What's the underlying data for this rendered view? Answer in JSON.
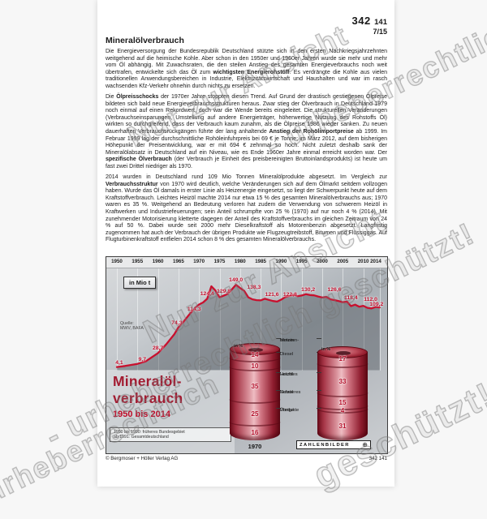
{
  "header": {
    "code_main": "342",
    "code_sub": "141",
    "page": "7/15"
  },
  "title": "Mineralölverbrauch",
  "paragraphs": [
    [
      {
        "t": "Die Energieversorgung der Bundesrepublik Deutschland stützte sich in den ersten Nachkriegsjahrzehnten weitgehend auf die heimische Kohle. Aber schon in den 1950er und 1960er Jahren wurde sie mehr und mehr vom Öl abhängig. Mit Zuwachsraten, die den steilen Anstieg des gesamten Energieverbrauchs noch weit übertrafen, entwickelte sich das Öl zum ",
        "b": false
      },
      {
        "t": "wichtigsten Energierohstoff",
        "b": true
      },
      {
        "t": ". Es verdrängte die Kohle aus vielen traditionellen Anwendungsbereichen in Industrie, Elektrizitätswirtschaft und Haushalten und war im rasch wachsenden Kfz-Verkehr ohnehin durch nichts zu ersetzen.",
        "b": false
      }
    ],
    [
      {
        "t": "Die ",
        "b": false
      },
      {
        "t": "Ölpreisschocks",
        "b": true
      },
      {
        "t": " der 1970er Jahre stoppten diesen Trend. Auf Grund der drastisch gestiegenen Ölpreise bildeten sich bald neue Energieverbrauchsstrukturen heraus. Zwar stieg der Ölverbrauch in Deutschland 1979 noch einmal auf einen Rekordwert, doch war die Wende bereits eingeleitet. Die strukturellen Veränderungen (Verbrauchseinsparungen, Umstellung auf andere Energieträger, höherwertige Nutzung des Rohstoffs Öl) wirkten so durchgreifend, dass der Verbrauch kaum zunahm, als die Ölpreise 1986 wieder sanken. Zu neuen dauerhaften Verbrauchsrückgängen führte der lang anhaltende ",
        "b": false
      },
      {
        "t": "Anstieg der Rohölimportpreise",
        "b": true
      },
      {
        "t": " ab 1999. Im Februar 1999 lag der durchschnittliche Rohöleinfuhrpreis bei 69 € je Tonne; im März 2012, auf dem bisherigen Höhepunkt der Preisentwicklung, war er mit 694 € zehnmal so hoch. Nicht zuletzt deshalb sank der Mineralölabsatz in Deutschland auf ein Niveau, wie es Ende 1960er Jahre einmal erreicht worden war. Der ",
        "b": false
      },
      {
        "t": "spezifische Ölverbrauch",
        "b": true
      },
      {
        "t": " (der Verbrauch je Einheit des preisbereinigten Bruttoinlandsprodukts) ist heute um fast zwei Drittel niedriger als 1970.",
        "b": false
      }
    ],
    [
      {
        "t": "2014 wurden in Deutschland rund 109 Mio Tonnen Mineralölprodukte abgesetzt. Im Vergleich zur ",
        "b": false
      },
      {
        "t": "Verbrauchsstruktur",
        "b": true
      },
      {
        "t": " von 1970 wird deutlich, welche Veränderungen sich auf dem Ölmarkt seitdem vollzogen haben. Wurde das Öl damals in erster Linie als Heizenergie eingesetzt, so liegt der Schwerpunkt heute auf dem Kraftstoffverbrauch. Leichtes Heizöl machte 2014 nur etwa 15 % des gesamten Mineralölverbrauchs aus; 1970 waren es 35 %. Weitgehend an Bedeutung verloren hat zudem die Verwendung von schwerem Heizöl in Kraftwerken und Industriefeuerungen; sein Anteil schrumpfte von 25 % (1970) auf nur noch 4 % (2014). Mit zunehmender Motorisierung kletterte dagegen der Anteil des Kraftstoffverbrauchs im gleichen Zeitraum von 24 % auf 50 %. Dabei wurde seit 2000 mehr Dieselkraftstoff als Motorenbenzin abgesetzt. Langfristig zugenommen hat auch der Verbrauch der übrigen Produkte wie Flugzeugtreibstoff, Bitumen und Flüssiggas. Auf Flugturbinenkraftstoff entfielen 2014 schon 8 % des gesamten Mineralölverbrauchs.",
        "b": false
      }
    ]
  ],
  "chart_data": {
    "type": "line",
    "title_lines": [
      "Mineralöl-",
      "verbrauch"
    ],
    "subtitle": "1950 bis 2014",
    "unit_label": "in Mio t",
    "source_lines": [
      "Quelle:",
      "MWV, BAFA"
    ],
    "footnote_lines": [
      "1950 bis 1990: früheres Bundesgebiet",
      "ab 1991: Gesamtdeutschland"
    ],
    "x_ticks": [
      "1950",
      "1955",
      "1960",
      "1965",
      "1970",
      "1975",
      "1980",
      "1985",
      "1990",
      "1995",
      "2000",
      "2005",
      "2010",
      "2014"
    ],
    "ylim": [
      0,
      160
    ],
    "grid": true,
    "line_color": "#c8102e",
    "labeled_points": [
      {
        "year": 1950,
        "value": 4.1,
        "label": "4,1"
      },
      {
        "year": 1955,
        "value": 9.7,
        "label": "9,7"
      },
      {
        "year": 1960,
        "value": 28.7,
        "label": "28,7"
      },
      {
        "year": 1965,
        "value": 74.3,
        "label": "74,3"
      },
      {
        "year": 1970,
        "value": 114.3,
        "label": "114,3"
      },
      {
        "year": 1972,
        "value": 124.4,
        "label": "124,4"
      },
      {
        "year": 1976,
        "value": 129.8,
        "label": "129,8"
      },
      {
        "year": 1979,
        "value": 149.0,
        "label": "149,0"
      },
      {
        "year": 1981,
        "value": 138.3,
        "label": "138,3"
      },
      {
        "year": 1985,
        "value": 121.6,
        "label": "121,6"
      },
      {
        "year": 1990,
        "value": 122.8,
        "label": "122,8"
      },
      {
        "year": 1995,
        "value": 130.2,
        "label": "130,2"
      },
      {
        "year": 2000,
        "value": 126.6,
        "label": "126,6"
      },
      {
        "year": 2005,
        "value": 118.4,
        "label": "118,4"
      },
      {
        "year": 2010,
        "value": 112.0,
        "label": "112,0"
      },
      {
        "year": 2014,
        "value": 109.2,
        "label": "109,2"
      }
    ],
    "curve": [
      [
        1950,
        4.1
      ],
      [
        1952,
        6
      ],
      [
        1955,
        9.7
      ],
      [
        1957,
        14
      ],
      [
        1960,
        28.7
      ],
      [
        1962,
        44
      ],
      [
        1964,
        62
      ],
      [
        1965,
        74.3
      ],
      [
        1966,
        82
      ],
      [
        1967,
        91
      ],
      [
        1968,
        100
      ],
      [
        1969,
        108
      ],
      [
        1970,
        114.3
      ],
      [
        1971,
        118
      ],
      [
        1972,
        124.4
      ],
      [
        1973,
        146.5
      ],
      [
        1974,
        139
      ],
      [
        1975,
        127
      ],
      [
        1976,
        129.8
      ],
      [
        1977,
        133
      ],
      [
        1978,
        141
      ],
      [
        1979,
        149
      ],
      [
        1980,
        143.5
      ],
      [
        1981,
        138.3
      ],
      [
        1982,
        127
      ],
      [
        1983,
        123.5
      ],
      [
        1984,
        122
      ],
      [
        1985,
        121.6
      ],
      [
        1986,
        124.5
      ],
      [
        1987,
        122.5
      ],
      [
        1988,
        120.5
      ],
      [
        1989,
        119.5
      ],
      [
        1990,
        122.8
      ],
      [
        1991,
        127.5
      ],
      [
        1992,
        129.5
      ],
      [
        1993,
        131.5
      ],
      [
        1994,
        129
      ],
      [
        1995,
        130.2
      ],
      [
        1996,
        132.5
      ],
      [
        1997,
        131
      ],
      [
        1998,
        130.5
      ],
      [
        1999,
        128.5
      ],
      [
        2000,
        126.6
      ],
      [
        2001,
        127.8
      ],
      [
        2002,
        123.5
      ],
      [
        2003,
        122
      ],
      [
        2004,
        120.5
      ],
      [
        2005,
        118.4
      ],
      [
        2006,
        119.5
      ],
      [
        2007,
        111.5
      ],
      [
        2008,
        114
      ],
      [
        2009,
        110.5
      ],
      [
        2010,
        112
      ],
      [
        2011,
        108.5
      ],
      [
        2012,
        107.5
      ],
      [
        2013,
        110
      ],
      [
        2014,
        109.2
      ]
    ],
    "barrels": {
      "unit_label": "in %",
      "legend": [
        {
          "name": "Motorenbenzin",
          "lines": [
            "Motoren-",
            "benzin"
          ]
        },
        {
          "name": "Diesel",
          "lines": [
            "Diesel"
          ]
        },
        {
          "name": "Leichtes Heizöl",
          "lines": [
            "Leichtes",
            "Heizöl"
          ]
        },
        {
          "name": "Schweres Heizöl",
          "lines": [
            "Schweres",
            "Heizöl"
          ]
        },
        {
          "name": "Übrige Produkte",
          "lines": [
            "Übrige",
            "Produkte"
          ]
        }
      ],
      "series": [
        {
          "name": "1970",
          "values": [
            14,
            10,
            35,
            25,
            16
          ]
        },
        {
          "name": "2014",
          "values": [
            17,
            33,
            15,
            4,
            31
          ]
        }
      ]
    }
  },
  "watermark": {
    "texts": [
      "Nur zur Ansicht",
      "- urheberrechtlich",
      "geschützt!",
      "- urheberrechtlich geschützt!"
    ]
  },
  "footer": {
    "logo_text": "ZAHLENBILDER",
    "copyright": "© Bergmoser + Höller Verlag AG",
    "code": "342 141"
  }
}
